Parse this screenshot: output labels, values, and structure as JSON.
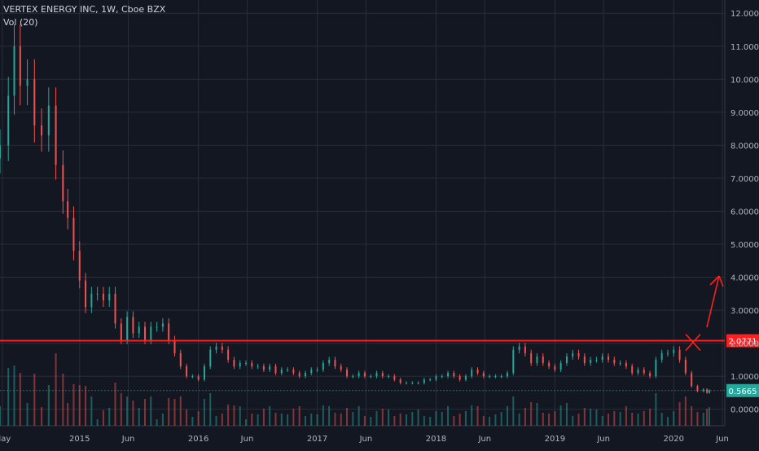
{
  "header": {
    "symbol_line": "VERTEX ENERGY INC, 1W, Cboe BZX",
    "volume_indicator": "Vol (20)"
  },
  "colors": {
    "background": "#131722",
    "grid": "#2a2e39",
    "text": "#b2b5be",
    "up": "#26a69a",
    "down": "#ef5350",
    "annotation": "#ff1f1f"
  },
  "chart_data": {
    "type": "candlestick",
    "title": "VERTEX ENERGY INC, 1W, Cboe BZX",
    "indicator": "Vol (20)",
    "y_axis": {
      "ticks": [
        "12.0000",
        "11.0000",
        "10.0000",
        "9.0000",
        "8.0000",
        "7.0000",
        "6.0000",
        "5.0000",
        "4.0000",
        "3.0000",
        "2.0000",
        "1.0000",
        "0.0000"
      ],
      "range": [
        -0.5,
        12.4
      ],
      "side": "right"
    },
    "x_axis": {
      "ticks": [
        "May",
        "2015",
        "Jun",
        "2016",
        "Jun",
        "2017",
        "Jun",
        "2018",
        "Jun",
        "2019",
        "Jun",
        "2020",
        "Jun"
      ]
    },
    "grid": true,
    "horizontal_line": {
      "price": 2.0771,
      "label": "2.0771"
    },
    "last_price": {
      "price": 0.5665,
      "label": "0.5665"
    },
    "annotations": [
      "cross mark at 2.0771 line",
      "upward arrow toward 4.0"
    ],
    "series": [
      {
        "name": "price",
        "points": [
          [
            2014.33,
            8.0
          ],
          [
            2014.4,
            9.5
          ],
          [
            2014.45,
            11.0
          ],
          [
            2014.5,
            9.8
          ],
          [
            2014.56,
            10.0
          ],
          [
            2014.62,
            8.6
          ],
          [
            2014.68,
            8.3
          ],
          [
            2014.74,
            9.2
          ],
          [
            2014.8,
            7.4
          ],
          [
            2014.86,
            6.3
          ],
          [
            2014.9,
            5.8
          ],
          [
            2014.95,
            4.8
          ],
          [
            2015.0,
            3.9
          ],
          [
            2015.05,
            3.1
          ],
          [
            2015.1,
            3.5
          ],
          [
            2015.15,
            3.5
          ],
          [
            2015.2,
            3.3
          ],
          [
            2015.25,
            3.5
          ],
          [
            2015.3,
            2.6
          ],
          [
            2015.35,
            2.1
          ],
          [
            2015.4,
            2.8
          ],
          [
            2015.45,
            2.3
          ],
          [
            2015.5,
            2.5
          ],
          [
            2015.55,
            2.1
          ],
          [
            2015.6,
            2.5
          ],
          [
            2015.65,
            2.5
          ],
          [
            2015.7,
            2.6
          ],
          [
            2015.75,
            2.1
          ],
          [
            2015.8,
            1.7
          ],
          [
            2015.85,
            1.3
          ],
          [
            2015.9,
            1.0
          ],
          [
            2015.95,
            1.0
          ],
          [
            2016.0,
            0.9
          ],
          [
            2016.05,
            1.3
          ],
          [
            2016.1,
            1.8
          ],
          [
            2016.15,
            1.9
          ],
          [
            2016.2,
            1.8
          ],
          [
            2016.25,
            1.5
          ],
          [
            2016.3,
            1.3
          ],
          [
            2016.35,
            1.4
          ],
          [
            2016.4,
            1.4
          ],
          [
            2016.45,
            1.3
          ],
          [
            2016.5,
            1.3
          ],
          [
            2016.55,
            1.2
          ],
          [
            2016.6,
            1.3
          ],
          [
            2016.65,
            1.1
          ],
          [
            2016.7,
            1.2
          ],
          [
            2016.75,
            1.2
          ],
          [
            2016.8,
            1.1
          ],
          [
            2016.85,
            1.0
          ],
          [
            2016.9,
            1.1
          ],
          [
            2016.95,
            1.2
          ],
          [
            2017.0,
            1.2
          ],
          [
            2017.05,
            1.4
          ],
          [
            2017.1,
            1.5
          ],
          [
            2017.15,
            1.3
          ],
          [
            2017.2,
            1.2
          ],
          [
            2017.25,
            1.0
          ],
          [
            2017.3,
            1.0
          ],
          [
            2017.35,
            1.1
          ],
          [
            2017.4,
            1.0
          ],
          [
            2017.45,
            1.0
          ],
          [
            2017.5,
            1.1
          ],
          [
            2017.55,
            1.0
          ],
          [
            2017.6,
            1.0
          ],
          [
            2017.65,
            0.9
          ],
          [
            2017.7,
            0.8
          ],
          [
            2017.75,
            0.8
          ],
          [
            2017.8,
            0.8
          ],
          [
            2017.85,
            0.8
          ],
          [
            2017.9,
            0.9
          ],
          [
            2017.95,
            0.9
          ],
          [
            2018.0,
            1.0
          ],
          [
            2018.05,
            1.0
          ],
          [
            2018.1,
            1.1
          ],
          [
            2018.15,
            1.0
          ],
          [
            2018.2,
            0.9
          ],
          [
            2018.25,
            1.0
          ],
          [
            2018.3,
            1.2
          ],
          [
            2018.35,
            1.1
          ],
          [
            2018.4,
            1.0
          ],
          [
            2018.45,
            1.0
          ],
          [
            2018.5,
            1.0
          ],
          [
            2018.55,
            1.0
          ],
          [
            2018.6,
            1.1
          ],
          [
            2018.65,
            1.8
          ],
          [
            2018.7,
            1.9
          ],
          [
            2018.75,
            1.7
          ],
          [
            2018.8,
            1.4
          ],
          [
            2018.85,
            1.6
          ],
          [
            2018.9,
            1.4
          ],
          [
            2018.95,
            1.3
          ],
          [
            2019.0,
            1.2
          ],
          [
            2019.05,
            1.4
          ],
          [
            2019.1,
            1.6
          ],
          [
            2019.15,
            1.7
          ],
          [
            2019.2,
            1.6
          ],
          [
            2019.25,
            1.4
          ],
          [
            2019.3,
            1.5
          ],
          [
            2019.35,
            1.5
          ],
          [
            2019.4,
            1.6
          ],
          [
            2019.45,
            1.5
          ],
          [
            2019.5,
            1.4
          ],
          [
            2019.55,
            1.4
          ],
          [
            2019.6,
            1.3
          ],
          [
            2019.65,
            1.1
          ],
          [
            2019.7,
            1.2
          ],
          [
            2019.75,
            1.1
          ],
          [
            2019.8,
            1.0
          ],
          [
            2019.85,
            1.5
          ],
          [
            2019.9,
            1.7
          ],
          [
            2019.95,
            1.7
          ],
          [
            2020.0,
            1.8
          ],
          [
            2020.05,
            1.5
          ],
          [
            2020.1,
            1.1
          ],
          [
            2020.15,
            0.7
          ],
          [
            2020.2,
            0.55
          ],
          [
            2020.25,
            0.6
          ],
          [
            2020.28,
            0.5
          ],
          [
            2020.3,
            0.57
          ]
        ]
      }
    ]
  }
}
